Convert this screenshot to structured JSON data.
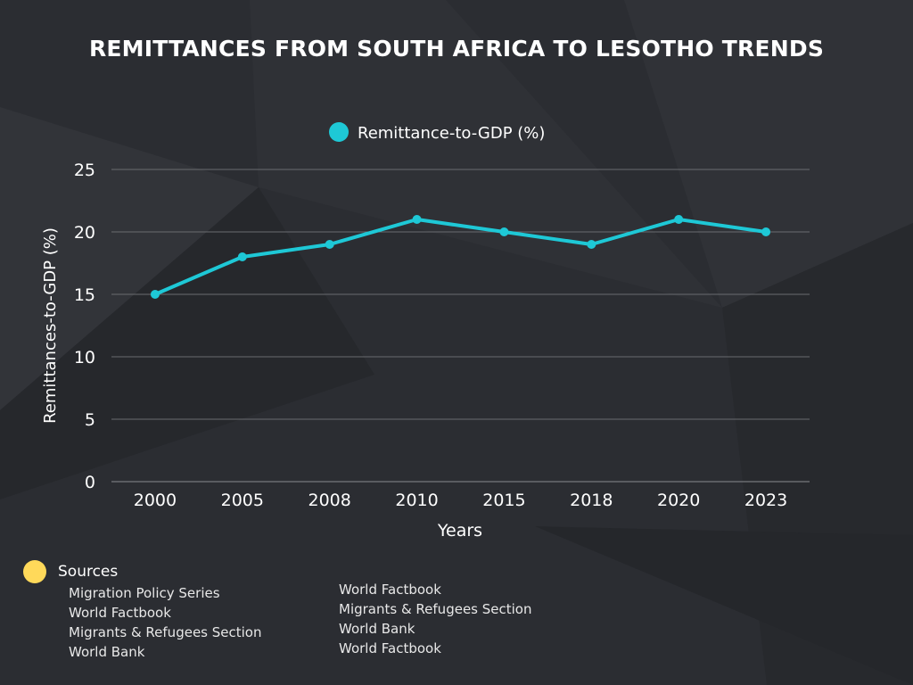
{
  "title": "REMITTANCES FROM SOUTH AFRICA TO LESOTHO TRENDS",
  "colors": {
    "background": "#2b2d32",
    "line": "#1ec8d6",
    "sources_dot": "#ffd95a",
    "grid": "#6a6c70"
  },
  "chart_data": {
    "type": "line",
    "categories": [
      "2000",
      "2005",
      "2008",
      "2010",
      "2015",
      "2018",
      "2020",
      "2023"
    ],
    "series": [
      {
        "name": "Remittance-to-GDP (%)",
        "values": [
          15,
          18,
          19,
          21,
          20,
          19,
          21,
          20
        ]
      }
    ],
    "xlabel": "Years",
    "ylabel": "Remittances-to-GDP (%)",
    "ylim": [
      0,
      25
    ],
    "yticks": [
      "0",
      "5",
      "10",
      "15",
      "20",
      "25"
    ],
    "grid": "horizontal",
    "legend": "top-center"
  },
  "sources": {
    "heading": "Sources",
    "column1": [
      "Migration Policy Series",
      "World Factbook",
      "Migrants & Refugees Section",
      "World Bank"
    ],
    "column2": [
      "World Factbook",
      "Migrants & Refugees Section",
      "World Bank",
      "World Factbook"
    ]
  }
}
